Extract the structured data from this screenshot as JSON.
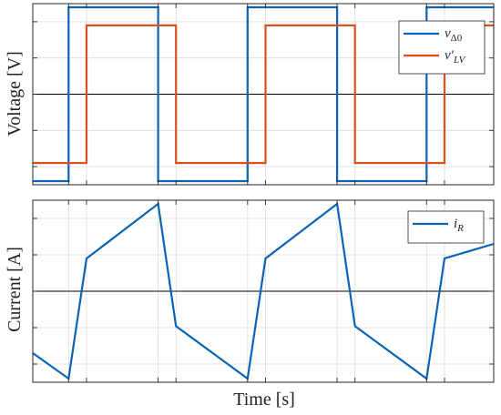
{
  "xlabel": "Time [s]",
  "colors": {
    "blue": "#0b63b6",
    "orange": "#d9501e"
  },
  "chart_data": [
    {
      "type": "line",
      "title": "",
      "ylabel": "Voltage [V]",
      "xlim": [
        0,
        10.3
      ],
      "ylim": [
        -1.25,
        1.25
      ],
      "grid": true,
      "legend_placement": "top-right",
      "series": [
        {
          "name": "v_Δ0",
          "legend_html": "<tspan>v</tspan><tspan dy='4' font-size='11' font-style='normal'>Δ0</tspan>",
          "color": "#0b63b6",
          "x": [
            0,
            0.8,
            0.8,
            2.8,
            2.8,
            4.8,
            4.8,
            6.8,
            6.8,
            8.8,
            8.8,
            10.3
          ],
          "y": [
            -1.2,
            -1.2,
            1.2,
            1.2,
            -1.2,
            -1.2,
            1.2,
            1.2,
            -1.2,
            -1.2,
            1.2,
            1.2
          ]
        },
        {
          "name": "v′_LV",
          "legend_html": "<tspan>v′</tspan><tspan dy='4' font-size='11'>LV</tspan>",
          "color": "#d9501e",
          "x": [
            0,
            1.2,
            1.2,
            3.2,
            3.2,
            5.2,
            5.2,
            7.2,
            7.2,
            9.2,
            9.2,
            10.3
          ],
          "y": [
            -0.95,
            -0.95,
            0.95,
            0.95,
            -0.95,
            -0.95,
            0.95,
            0.95,
            -0.95,
            -0.95,
            0.95,
            0.95
          ]
        }
      ]
    },
    {
      "type": "line",
      "title": "",
      "ylabel": "Current [A]",
      "xlim": [
        0,
        10.3
      ],
      "ylim": [
        -1.25,
        1.25
      ],
      "grid": true,
      "legend_placement": "top-right",
      "series": [
        {
          "name": "i_R",
          "legend_html": "<tspan>i</tspan><tspan dy='4' font-size='11'>R</tspan>",
          "color": "#0b63b6",
          "x": [
            0,
            0.8,
            1.2,
            2.8,
            3.2,
            4.8,
            5.2,
            6.8,
            7.2,
            8.8,
            9.2,
            10.3
          ],
          "y": [
            -0.85,
            -1.2,
            0.45,
            1.2,
            -0.48,
            -1.2,
            0.45,
            1.2,
            -0.48,
            -1.2,
            0.45,
            0.65
          ]
        }
      ]
    }
  ],
  "xticks": [
    0.8,
    1.2,
    2.8,
    3.2,
    4.8,
    5.2,
    6.8,
    7.2,
    8.8,
    9.2
  ],
  "yticks": [
    -1.0,
    -0.5,
    0,
    0.5,
    1.0
  ]
}
